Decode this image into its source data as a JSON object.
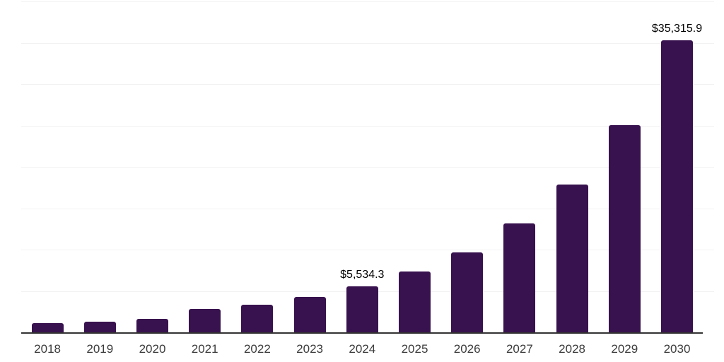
{
  "chart_data": {
    "type": "bar",
    "title": "",
    "xlabel": "",
    "ylabel": "",
    "categories": [
      "2018",
      "2019",
      "2020",
      "2021",
      "2022",
      "2023",
      "2024",
      "2025",
      "2026",
      "2027",
      "2028",
      "2029",
      "2030"
    ],
    "values": [
      1080,
      1310,
      1590,
      2830,
      3340,
      4280,
      5534.3,
      7320,
      9680,
      13130,
      17900,
      25050,
      35315.9
    ],
    "data_labels": [
      {
        "category": "2024",
        "text": "$5,534.3"
      },
      {
        "category": "2030",
        "text": "$35,315.9"
      }
    ],
    "ylim": [
      0,
      40000
    ],
    "gridline_step": 5000,
    "grid": true,
    "legend": false,
    "y_axis_tick_labels_visible": false
  },
  "colors": {
    "background": "#ffffff",
    "bar": "#38124E",
    "gridline": "#f2f2f2",
    "axis_line": "#333333",
    "x_label": "#3c3c3c",
    "value_label": "#000000"
  }
}
